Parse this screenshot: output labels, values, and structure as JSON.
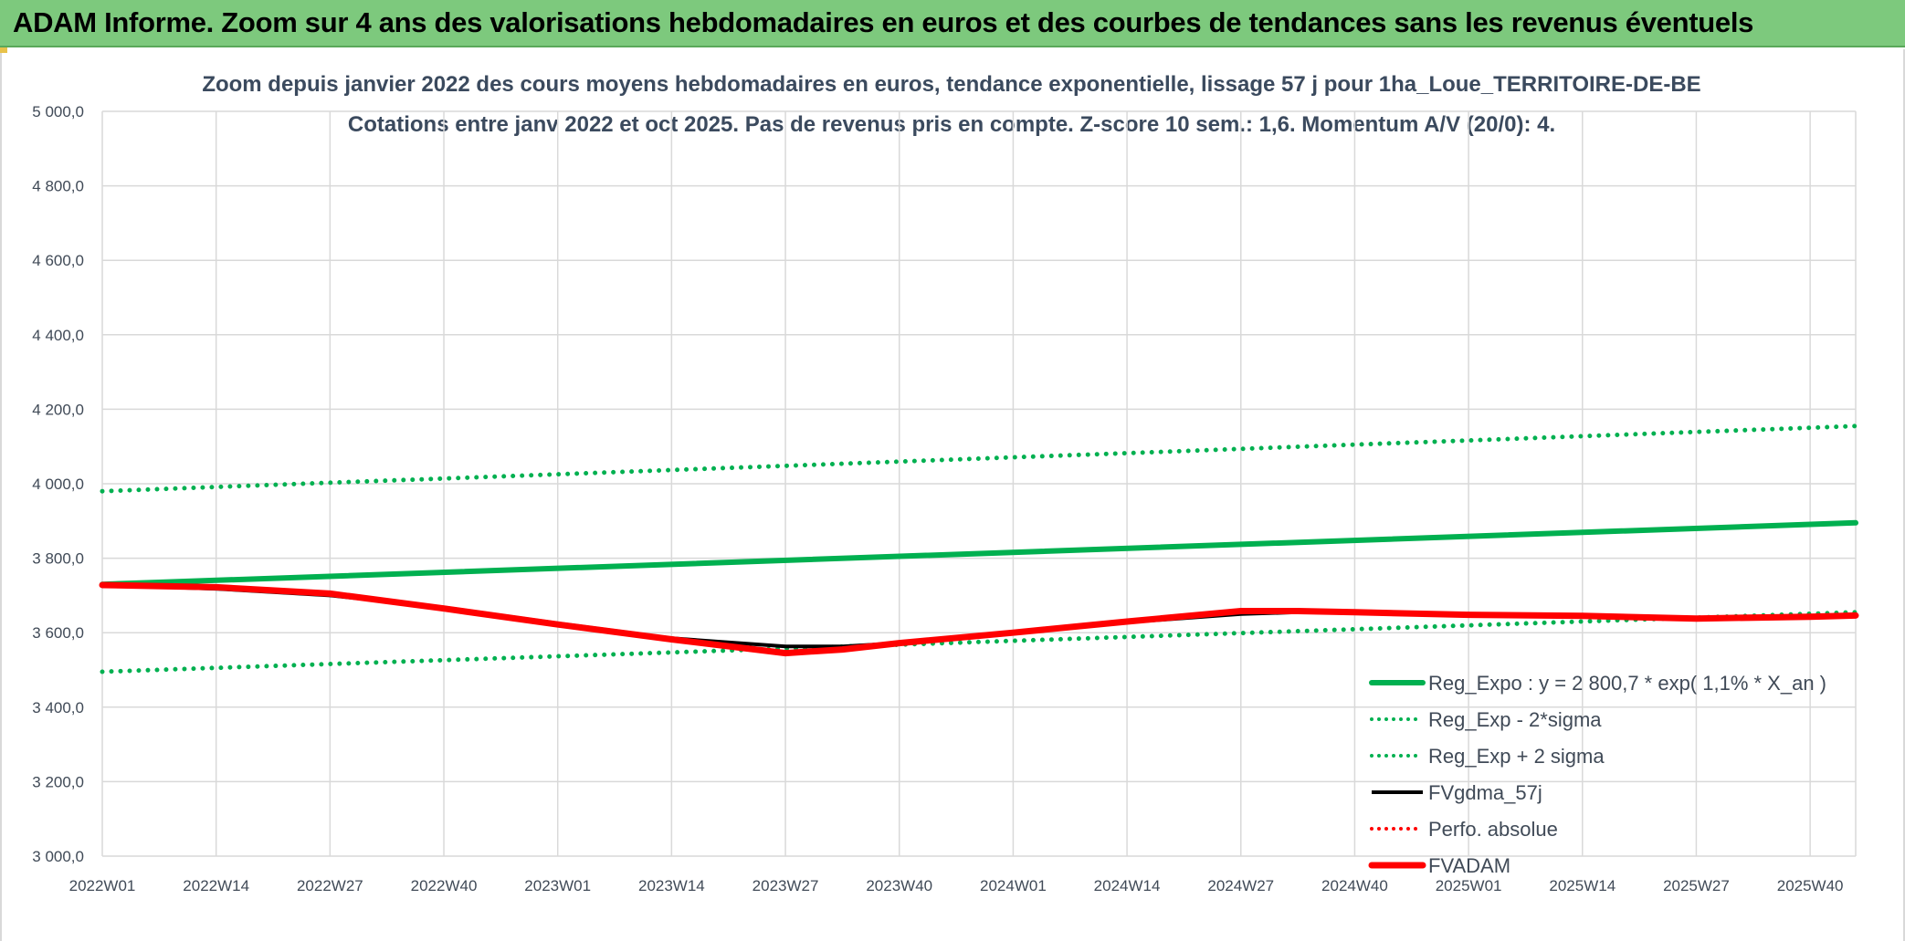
{
  "header": {
    "title": "ADAM Informe. Zoom sur 4 ans des valorisations hebdomadaires en euros et des courbes de tendances sans les revenus éventuels"
  },
  "colors": {
    "header_bg": "#7dc97d",
    "trend_green": "#00b050",
    "band_green": "#00b050",
    "fvgdma_black": "#000000",
    "perf_red": "#ff0000",
    "fvadam_red": "#ff0000",
    "grid": "#d9d9d9"
  },
  "chart_data": {
    "type": "line",
    "title_line1": "Zoom depuis janvier 2022 des cours moyens hebdomadaires en euros, tendance exponentielle, lissage 57 j pour 1ha_Loue_TERRITOIRE-DE-BE",
    "title_line2": "Cotations entre janv 2022 et oct 2025. Pas de revenus pris en compte. Z-score 10 sem.: 1,6. Momentum A/V (20/0): 4.",
    "xlabel": "",
    "ylabel": "",
    "ylim": [
      3000,
      5000
    ],
    "y_ticks": [
      "3 000,0",
      "3 200,0",
      "3 400,0",
      "3 600,0",
      "3 800,0",
      "4 000,0",
      "4 200,0",
      "4 400,0",
      "4 600,0",
      "4 800,0",
      "5 000,0"
    ],
    "x_categories": [
      "2022W01",
      "2022W14",
      "2022W27",
      "2022W40",
      "2023W01",
      "2023W14",
      "2023W27",
      "2023W40",
      "2024W01",
      "2024W14",
      "2024W27",
      "2024W40",
      "2025W01",
      "2025W14",
      "2025W27",
      "2025W40"
    ],
    "x_extent_index": [
      0,
      15.4
    ],
    "grid": true,
    "legend_position": "right",
    "series": [
      {
        "name": "Reg_Expo : y = 2 800,7 * exp( 1,1% *  X_an )",
        "style": "solid-thick",
        "color_key": "trend_green",
        "points": [
          [
            0,
            3730
          ],
          [
            15.4,
            3895
          ]
        ]
      },
      {
        "name": "Reg_Exp - 2*sigma",
        "style": "dotted",
        "color_key": "band_green",
        "points": [
          [
            0,
            3495
          ],
          [
            15.4,
            3655
          ]
        ]
      },
      {
        "name": "Reg_Exp + 2 sigma",
        "style": "dotted",
        "color_key": "band_green",
        "points": [
          [
            0,
            3980
          ],
          [
            15.4,
            4155
          ]
        ]
      },
      {
        "name": "FVgdma_57j",
        "style": "solid",
        "color_key": "fvgdma_black",
        "points": [
          [
            0,
            3728
          ],
          [
            1,
            3718
          ],
          [
            2,
            3700
          ],
          [
            3,
            3668
          ],
          [
            4,
            3625
          ],
          [
            5,
            3585
          ],
          [
            6,
            3563
          ],
          [
            6.5,
            3563
          ],
          [
            7,
            3572
          ],
          [
            8,
            3598
          ],
          [
            9,
            3628
          ],
          [
            10,
            3650
          ],
          [
            10.5,
            3655
          ],
          [
            11,
            3653
          ],
          [
            12,
            3648
          ],
          [
            13,
            3643
          ],
          [
            14,
            3640
          ],
          [
            15,
            3643
          ],
          [
            15.4,
            3645
          ]
        ]
      },
      {
        "name": "Perfo. absolue",
        "style": "dotted",
        "color_key": "perf_red",
        "points": [
          [
            0,
            3728
          ],
          [
            1,
            3722
          ],
          [
            2,
            3705
          ],
          [
            3,
            3665
          ],
          [
            4,
            3622
          ],
          [
            5,
            3582
          ],
          [
            6,
            3545
          ],
          [
            6.5,
            3555
          ],
          [
            7,
            3572
          ],
          [
            8,
            3600
          ],
          [
            9,
            3630
          ],
          [
            10,
            3658
          ],
          [
            10.5,
            3658
          ],
          [
            11,
            3655
          ],
          [
            12,
            3648
          ],
          [
            13,
            3645
          ],
          [
            14,
            3638
          ],
          [
            15,
            3643
          ],
          [
            15.4,
            3646
          ]
        ]
      },
      {
        "name": "FVADAM",
        "style": "solid-thick",
        "color_key": "fvadam_red",
        "points": [
          [
            0,
            3728
          ],
          [
            1,
            3722
          ],
          [
            2,
            3705
          ],
          [
            3,
            3665
          ],
          [
            4,
            3622
          ],
          [
            5,
            3582
          ],
          [
            6,
            3545
          ],
          [
            6.5,
            3555
          ],
          [
            7,
            3572
          ],
          [
            8,
            3600
          ],
          [
            9,
            3630
          ],
          [
            10,
            3658
          ],
          [
            10.5,
            3658
          ],
          [
            11,
            3655
          ],
          [
            12,
            3648
          ],
          [
            13,
            3645
          ],
          [
            14,
            3638
          ],
          [
            15,
            3643
          ],
          [
            15.4,
            3646
          ]
        ]
      }
    ]
  }
}
